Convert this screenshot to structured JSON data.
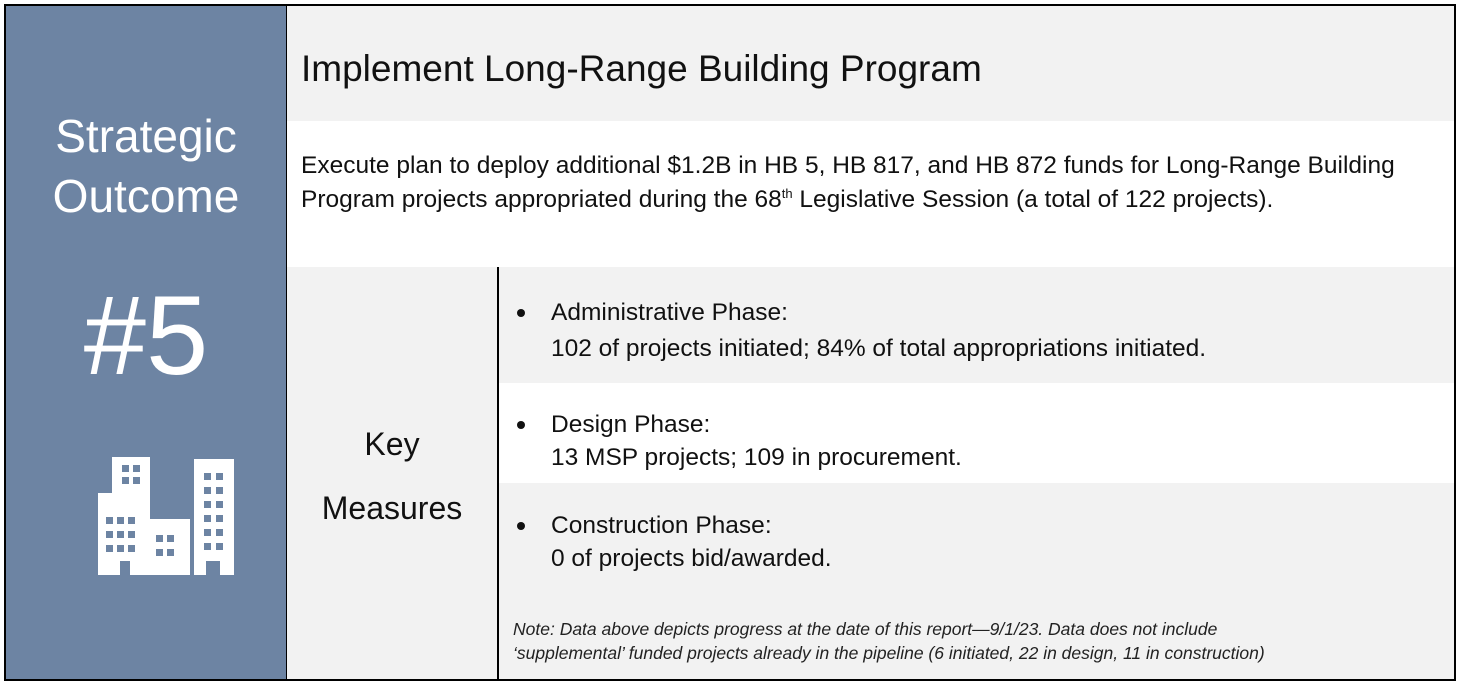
{
  "sidebar": {
    "heading_lines": [
      "Strategic",
      "Outcome"
    ],
    "number": "#5"
  },
  "title": "Implement Long-Range Building Program",
  "description": {
    "before": "Execute plan to deploy additional $1.2B in HB 5, HB 817, and HB 872 funds for Long-Range Building Program projects appropriated during the 68",
    "sup": "th",
    "after": " Legislative Session (a total of 122 projects)."
  },
  "key_measures": {
    "label_lines": [
      "Key",
      "Measures"
    ],
    "items": [
      {
        "phase": "Administrative Phase:",
        "detail": "102 of projects initiated; 84% of total appropriations initiated."
      },
      {
        "phase": "Design Phase:",
        "detail": "13 MSP projects; 109 in procurement."
      },
      {
        "phase": "Construction Phase:",
        "detail": "0 of projects bid/awarded."
      }
    ],
    "note_lines": [
      "Note: Data above depicts progress at the date of this report—9/1/23.  Data does not include",
      "‘supplemental’ funded projects already in the pipeline (6 initiated, 22 in design, 11 in construction)"
    ]
  }
}
